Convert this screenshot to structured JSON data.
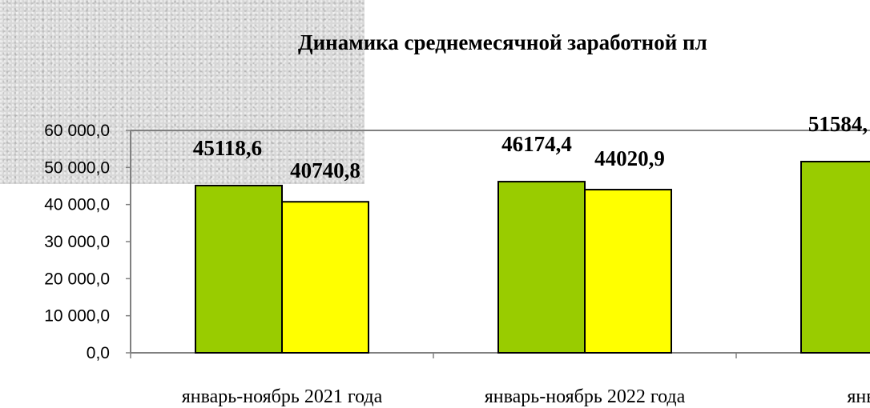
{
  "chart_data": {
    "type": "bar",
    "title": "Динамика среднемесячной заработной пл",
    "categories": [
      "январь-ноябрь 2021 года",
      "январь-ноябрь 2022 года",
      "январь-но"
    ],
    "series": [
      {
        "values": [
          45118.6,
          46174.4,
          51584.0
        ],
        "data_labels": [
          "45118,6",
          "46174,4",
          "51584,"
        ],
        "color": "#99cc00"
      },
      {
        "values": [
          40740.8,
          44020.9,
          null
        ],
        "data_labels": [
          "40740,8",
          "44020,9",
          ""
        ],
        "color": "#ffff00"
      }
    ],
    "ylim": [
      0,
      60000
    ],
    "yticks": [
      0,
      10000,
      20000,
      30000,
      40000,
      50000,
      60000
    ],
    "ytick_labels": [
      "0,0",
      "10 000,0",
      "20 000,0",
      "30 000,0",
      "40 000,0",
      "50 000,0",
      "60 000,0"
    ],
    "grid": false,
    "background_texture": true
  }
}
